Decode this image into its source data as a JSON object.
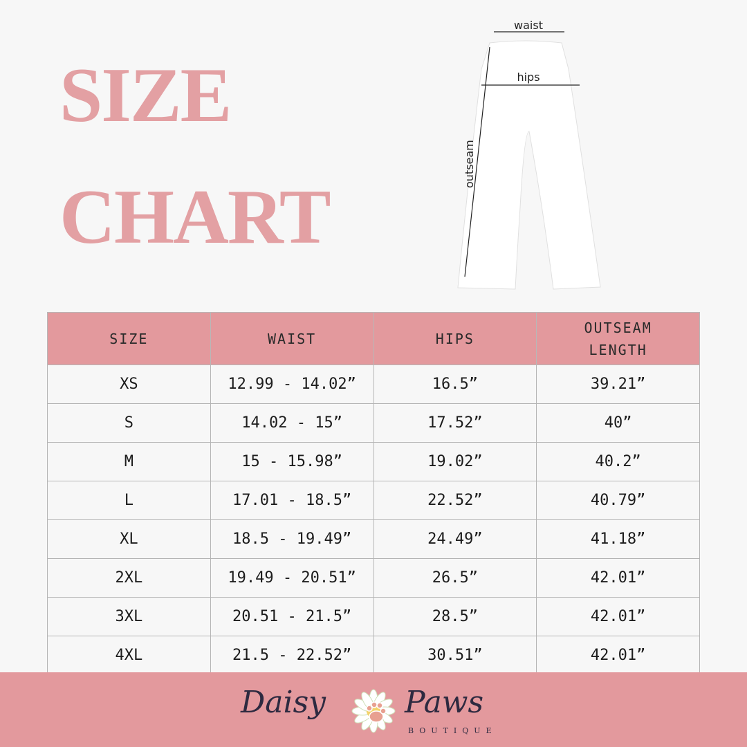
{
  "title": {
    "line1": "SIZE",
    "line2": "CHART"
  },
  "diagram": {
    "waist": "waist",
    "hips": "hips",
    "outseam": "outseam"
  },
  "table": {
    "headers": [
      "SIZE",
      "WAIST",
      "HIPS",
      "OUTSEAM LENGTH"
    ],
    "rows": [
      [
        "XS",
        "12.99 - 14.02”",
        "16.5”",
        "39.21”"
      ],
      [
        "S",
        "14.02 - 15”",
        "17.52”",
        "40”"
      ],
      [
        "M",
        "15 - 15.98”",
        "19.02”",
        "40.2”"
      ],
      [
        "L",
        "17.01 - 18.5”",
        "22.52”",
        "40.79”"
      ],
      [
        "XL",
        "18.5 - 19.49”",
        "24.49”",
        "41.18”"
      ],
      [
        "2XL",
        "19.49 - 20.51”",
        "26.5”",
        "42.01”"
      ],
      [
        "3XL",
        "20.51 - 21.5”",
        "28.5”",
        "42.01”"
      ],
      [
        "4XL",
        "21.5 - 22.52”",
        "30.51”",
        "42.01”"
      ]
    ]
  },
  "brand": {
    "word1": "Daisy",
    "word2": "Paws",
    "sub": "BOUTIQUE"
  },
  "colors": {
    "accent": "#e3999d",
    "title": "#e3a0a3",
    "text": "#1c1c1c"
  }
}
